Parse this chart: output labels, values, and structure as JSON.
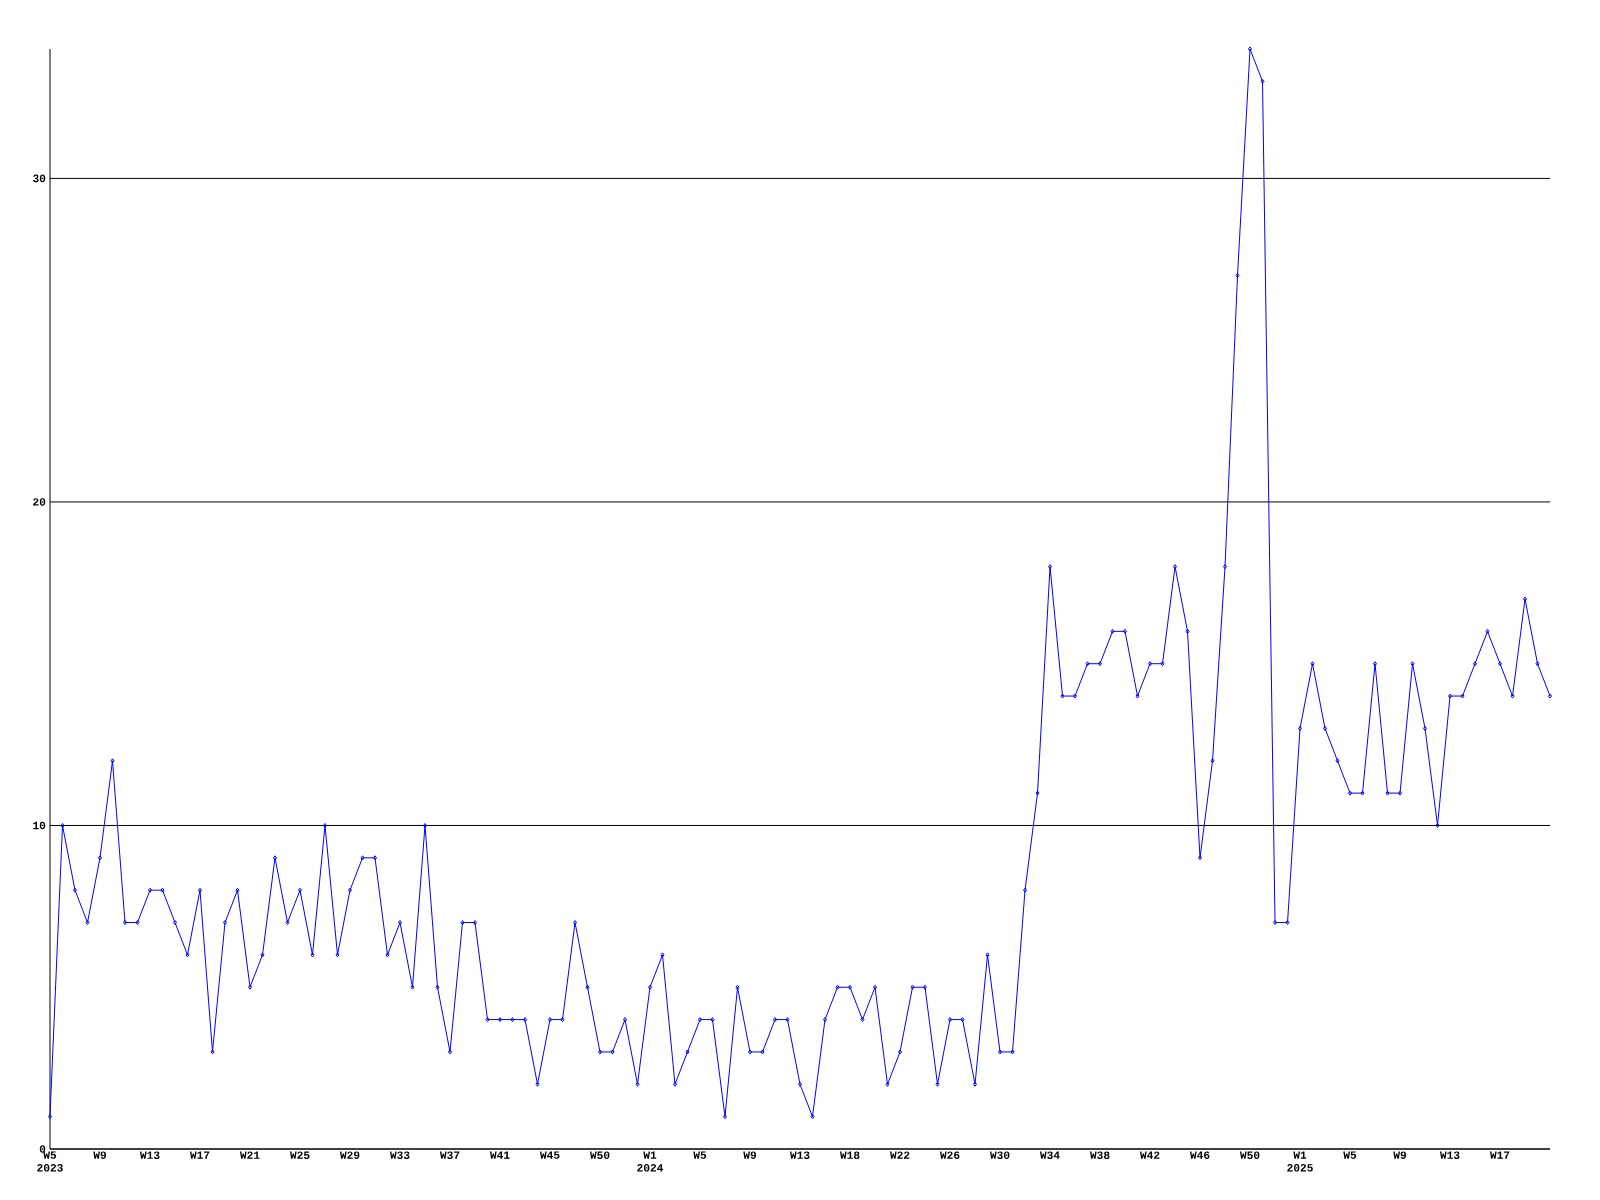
{
  "chart_data": {
    "type": "line",
    "categories": [
      "W5 2023",
      null,
      null,
      null,
      "W9",
      null,
      null,
      null,
      "W13",
      null,
      null,
      null,
      "W17",
      null,
      null,
      null,
      "W21",
      null,
      null,
      null,
      "W25",
      null,
      null,
      null,
      "W29",
      null,
      null,
      null,
      "W33",
      null,
      null,
      null,
      "W37",
      null,
      null,
      null,
      "W41",
      null,
      null,
      null,
      "W45",
      null,
      null,
      null,
      "W50",
      null,
      null,
      null,
      "W1 2024",
      null,
      null,
      null,
      "W5",
      null,
      null,
      null,
      "W9",
      null,
      null,
      null,
      "W13",
      null,
      null,
      null,
      "W18",
      null,
      null,
      null,
      "W22",
      null,
      null,
      null,
      "W26",
      null,
      null,
      null,
      "W30",
      null,
      null,
      null,
      "W34",
      null,
      null,
      null,
      "W38",
      null,
      null,
      null,
      "W42",
      null,
      null,
      null,
      "W46",
      null,
      null,
      null,
      "W50",
      null,
      null,
      null,
      "W1 2025",
      null,
      null,
      null,
      "W5",
      null,
      null,
      null,
      "W9",
      null,
      null,
      null,
      "W13",
      null,
      null,
      null,
      "W17",
      null,
      null,
      null,
      null
    ],
    "values": [
      1,
      10,
      8,
      7,
      9,
      12,
      7,
      7,
      8,
      8,
      7,
      6,
      8,
      3,
      7,
      8,
      5,
      6,
      9,
      7,
      8,
      6,
      10,
      6,
      8,
      9,
      9,
      6,
      7,
      5,
      10,
      5,
      3,
      7,
      7,
      4,
      4,
      4,
      4,
      2,
      4,
      4,
      7,
      5,
      3,
      3,
      4,
      2,
      5,
      6,
      2,
      3,
      4,
      4,
      1,
      5,
      3,
      3,
      4,
      4,
      2,
      1,
      4,
      5,
      5,
      4,
      5,
      2,
      3,
      5,
      5,
      2,
      4,
      4,
      2,
      6,
      3,
      3,
      8,
      11,
      18,
      14,
      14,
      15,
      15,
      16,
      16,
      14,
      15,
      15,
      18,
      16,
      9,
      12,
      18,
      27,
      34,
      33,
      7,
      7,
      13,
      15,
      13,
      12,
      11,
      11,
      15,
      11,
      11,
      15,
      13,
      10,
      14,
      14,
      15,
      16,
      15,
      14,
      17,
      15,
      14
    ],
    "color": "#0000ff",
    "ylim": [
      0,
      34
    ],
    "yticks": [
      0,
      10,
      20,
      30
    ],
    "grid": "y",
    "marker": "diamond",
    "line_style": "solid"
  }
}
